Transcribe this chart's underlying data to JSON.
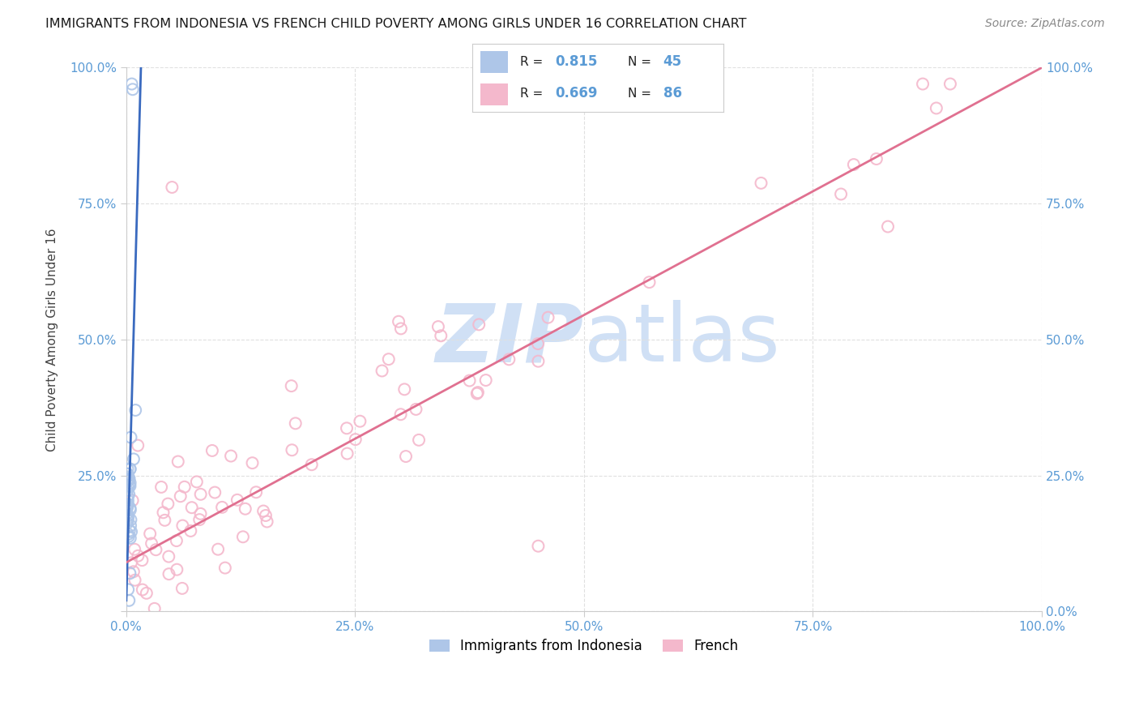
{
  "title": "IMMIGRANTS FROM INDONESIA VS FRENCH CHILD POVERTY AMONG GIRLS UNDER 16 CORRELATION CHART",
  "source": "Source: ZipAtlas.com",
  "ylabel": "Child Poverty Among Girls Under 16",
  "xlim": [
    0,
    1.0
  ],
  "ylim": [
    0,
    1.0
  ],
  "xticks": [
    0.0,
    0.25,
    0.5,
    0.75,
    1.0
  ],
  "yticks": [
    0.0,
    0.25,
    0.5,
    0.75,
    1.0
  ],
  "xticklabels": [
    "0.0%",
    "25.0%",
    "50.0%",
    "75.0%",
    "100.0%"
  ],
  "yticklabels_left": [
    "",
    "25.0%",
    "50.0%",
    "75.0%",
    "100.0%"
  ],
  "yticklabels_right": [
    "0.0%",
    "25.0%",
    "50.0%",
    "75.0%",
    "100.0%"
  ],
  "blue_R": "0.815",
  "blue_N": "45",
  "pink_R": "0.669",
  "pink_N": "86",
  "blue_color": "#aec6e8",
  "pink_color": "#f4b8cc",
  "blue_line_color": "#3a6abf",
  "pink_line_color": "#e07090",
  "watermark_color": "#d0e0f5",
  "background_color": "#ffffff",
  "grid_color": "#e0e0e0",
  "tick_color": "#5b9bd5",
  "legend_label_blue": "Immigrants from Indonesia",
  "legend_label_pink": "French",
  "blue_line_x0": 0.0,
  "blue_line_y0": 0.02,
  "blue_line_x1": 0.016,
  "blue_line_y1": 1.0,
  "pink_line_x0": 0.0,
  "pink_line_y0": 0.09,
  "pink_line_x1": 1.0,
  "pink_line_y1": 1.0
}
